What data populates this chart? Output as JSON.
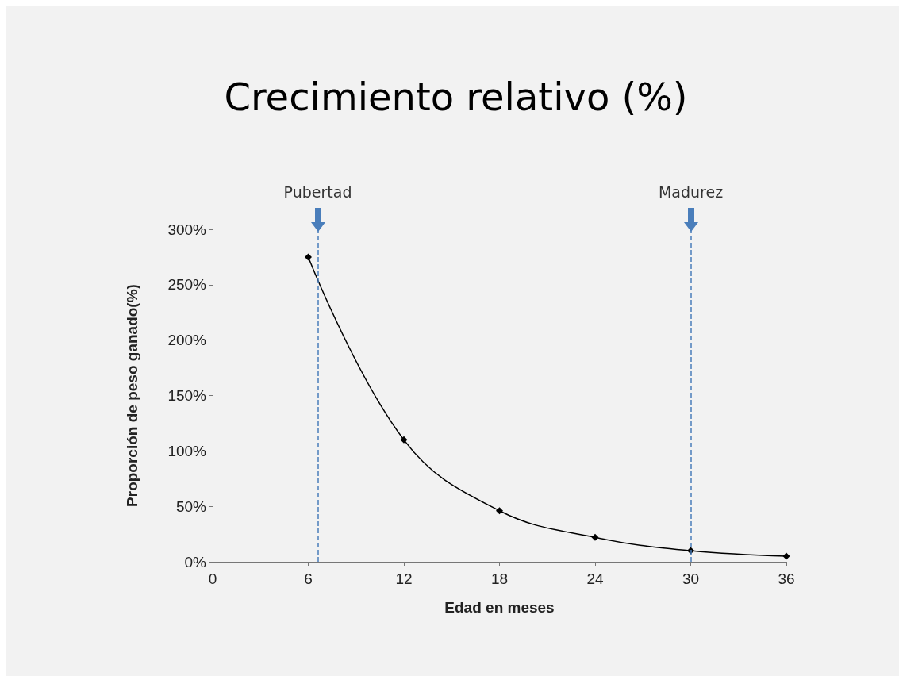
{
  "chart_data": {
    "type": "line",
    "title": "Crecimiento relativo (%)",
    "xlabel": "Edad en meses",
    "ylabel": "Proporción de peso ganado(%)",
    "x": [
      6,
      12,
      18,
      24,
      30,
      36
    ],
    "series": [
      {
        "color": "#000000",
        "values": [
          275,
          110,
          46,
          22,
          10,
          5
        ]
      }
    ],
    "xlim": [
      0,
      36
    ],
    "xticks": [
      0,
      6,
      12,
      18,
      24,
      30,
      36
    ],
    "ylim": [
      0,
      300
    ],
    "yticks": [
      {
        "value": 0,
        "label": "0%"
      },
      {
        "value": 50,
        "label": "50%"
      },
      {
        "value": 100,
        "label": "100%"
      },
      {
        "value": 150,
        "label": "150%"
      },
      {
        "value": 200,
        "label": "200%"
      },
      {
        "value": 250,
        "label": "250%"
      },
      {
        "value": 300,
        "label": "300%"
      }
    ],
    "ref_lines": [
      {
        "axis": "x",
        "value": 6.6,
        "label": "Pubertad",
        "color": "#4a7ebb",
        "line_style": "dashed"
      },
      {
        "axis": "x",
        "value": 30,
        "label": "Madurez",
        "color": "#4a7ebb",
        "line_style": "dashed"
      }
    ],
    "marker": "diamond",
    "line_style": "solid",
    "grid": false
  }
}
